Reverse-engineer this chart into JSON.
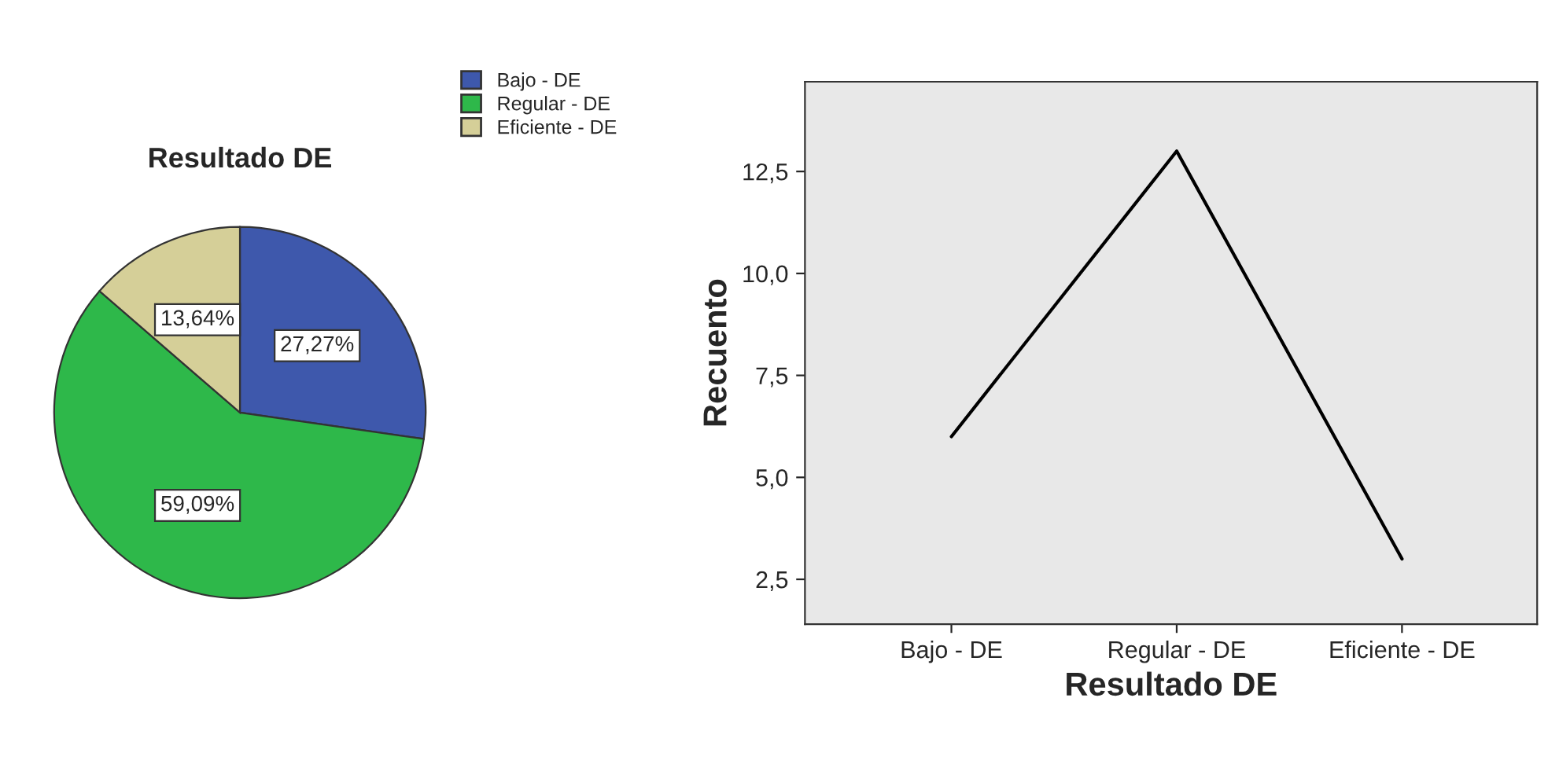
{
  "chart_data": [
    {
      "type": "pie",
      "title": "Resultado DE",
      "categories": [
        "Bajo - DE",
        "Regular - DE",
        "Eficiente - DE"
      ],
      "values": [
        27.27,
        59.09,
        13.64
      ],
      "colors": [
        "#3e58ac",
        "#2eb84a",
        "#d5cf98"
      ],
      "value_labels": [
        "27,27%",
        "59,09%",
        "13,64%"
      ],
      "legend": "top right"
    },
    {
      "type": "line",
      "categories": [
        "Bajo - DE",
        "Regular - DE",
        "Eficiente - DE"
      ],
      "series": [
        {
          "color": "#000000",
          "values": [
            6,
            13,
            3
          ]
        }
      ],
      "xlabel": "Resultado DE",
      "ylabel": "Recuento",
      "ylim": [
        1.4,
        14.7
      ],
      "yticks": [
        {
          "value": 2.5,
          "label": "2,5"
        },
        {
          "value": 5.0,
          "label": "5,0"
        },
        {
          "value": 7.5,
          "label": "7,5"
        },
        {
          "value": 10.0,
          "label": "10,0"
        },
        {
          "value": 12.5,
          "label": "12,5"
        }
      ],
      "grid": false,
      "legend": false,
      "marker": "none",
      "line_style": "solid"
    }
  ]
}
